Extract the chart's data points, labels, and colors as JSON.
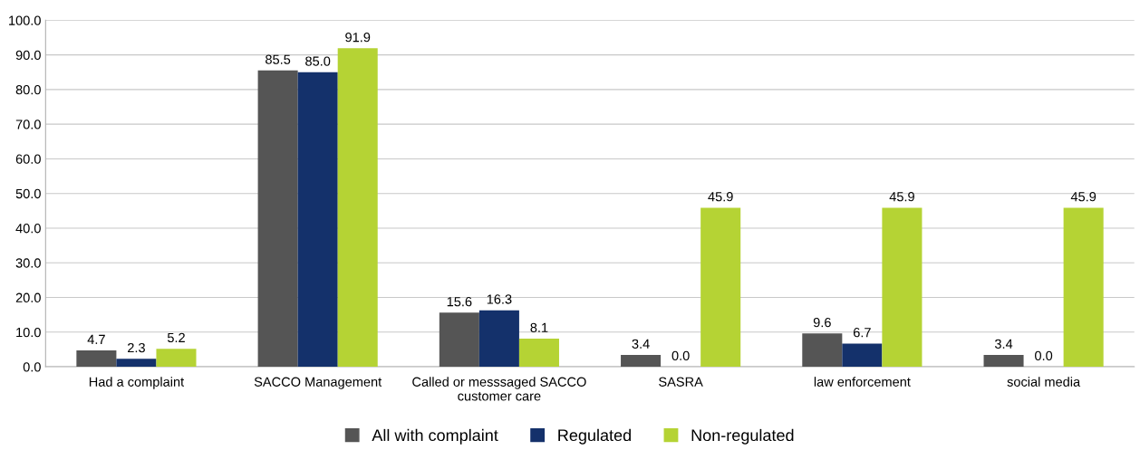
{
  "chart_data": {
    "type": "bar",
    "categories": [
      "Had a complaint",
      "SACCO Management",
      "Called or messsaged SACCO\ncustomer care",
      "SASRA",
      "law enforcement",
      "social media"
    ],
    "series": [
      {
        "name": "All with complaint",
        "color": "#555555",
        "values": [
          4.7,
          85.5,
          15.6,
          3.4,
          9.6,
          3.4
        ],
        "value_labels": [
          "4.7",
          "85.5",
          "15.6",
          "3.4",
          "9.6",
          "3.4"
        ]
      },
      {
        "name": "Regulated",
        "color": "#14316b",
        "values": [
          2.3,
          85.0,
          16.3,
          0.0,
          6.7,
          0.0
        ],
        "value_labels": [
          "2.3",
          "85.0",
          "16.3",
          "0.0",
          "6.7",
          "0.0"
        ]
      },
      {
        "name": "Non-regulated",
        "color": "#b5d334",
        "values": [
          5.2,
          91.9,
          8.1,
          45.9,
          45.9,
          45.9
        ],
        "value_labels": [
          "5.2",
          "91.9",
          "8.1",
          "45.9",
          "45.9",
          "45.9"
        ]
      }
    ],
    "ylim": [
      0,
      100
    ],
    "yticks": [
      {
        "value": 0,
        "label": "0.0"
      },
      {
        "value": 10,
        "label": "10.0"
      },
      {
        "value": 20,
        "label": "20.0"
      },
      {
        "value": 30,
        "label": "30.0"
      },
      {
        "value": 40,
        "label": "40.0"
      },
      {
        "value": 50,
        "label": "50.0"
      },
      {
        "value": 60,
        "label": "60.0"
      },
      {
        "value": 70,
        "label": "70.0"
      },
      {
        "value": 80,
        "label": "80.0"
      },
      {
        "value": 90,
        "label": "90.0"
      },
      {
        "value": 100,
        "label": "100.0"
      }
    ],
    "grid": "y",
    "legend": "bottom"
  }
}
